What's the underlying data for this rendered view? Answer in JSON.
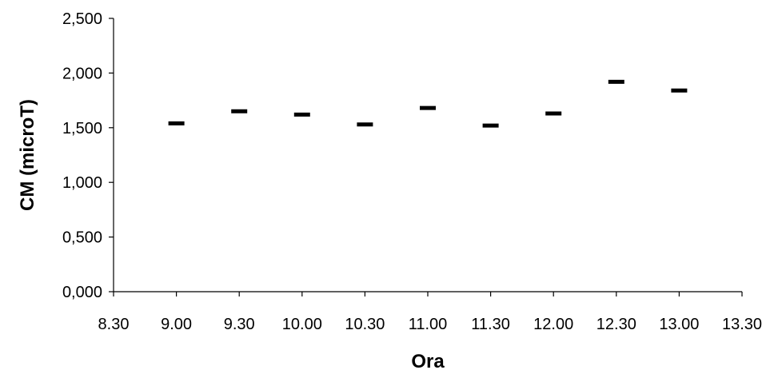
{
  "chart_data": {
    "type": "scatter",
    "title": "",
    "xlabel": "Ora",
    "ylabel": "CM (microT)",
    "x_ticks": [
      "8.30",
      "9.00",
      "9.30",
      "10.00",
      "10.30",
      "11.00",
      "11.30",
      "12.00",
      "12.30",
      "13.00",
      "13.30"
    ],
    "y_ticks": [
      "0,000",
      "0,500",
      "1,000",
      "1,500",
      "2,000",
      "2,500"
    ],
    "ylim": [
      0,
      2.5
    ],
    "marker": "dash",
    "grid": false,
    "legend": "none",
    "series": [
      {
        "x": [
          "9.00",
          "9.30",
          "10.00",
          "10.30",
          "11.00",
          "11.30",
          "12.00",
          "12.30",
          "13.00"
        ],
        "y": [
          1.54,
          1.65,
          1.62,
          1.53,
          1.68,
          1.52,
          1.63,
          1.92,
          1.84
        ]
      }
    ],
    "colors": {
      "marker": "#000000",
      "axis": "#000000"
    }
  }
}
